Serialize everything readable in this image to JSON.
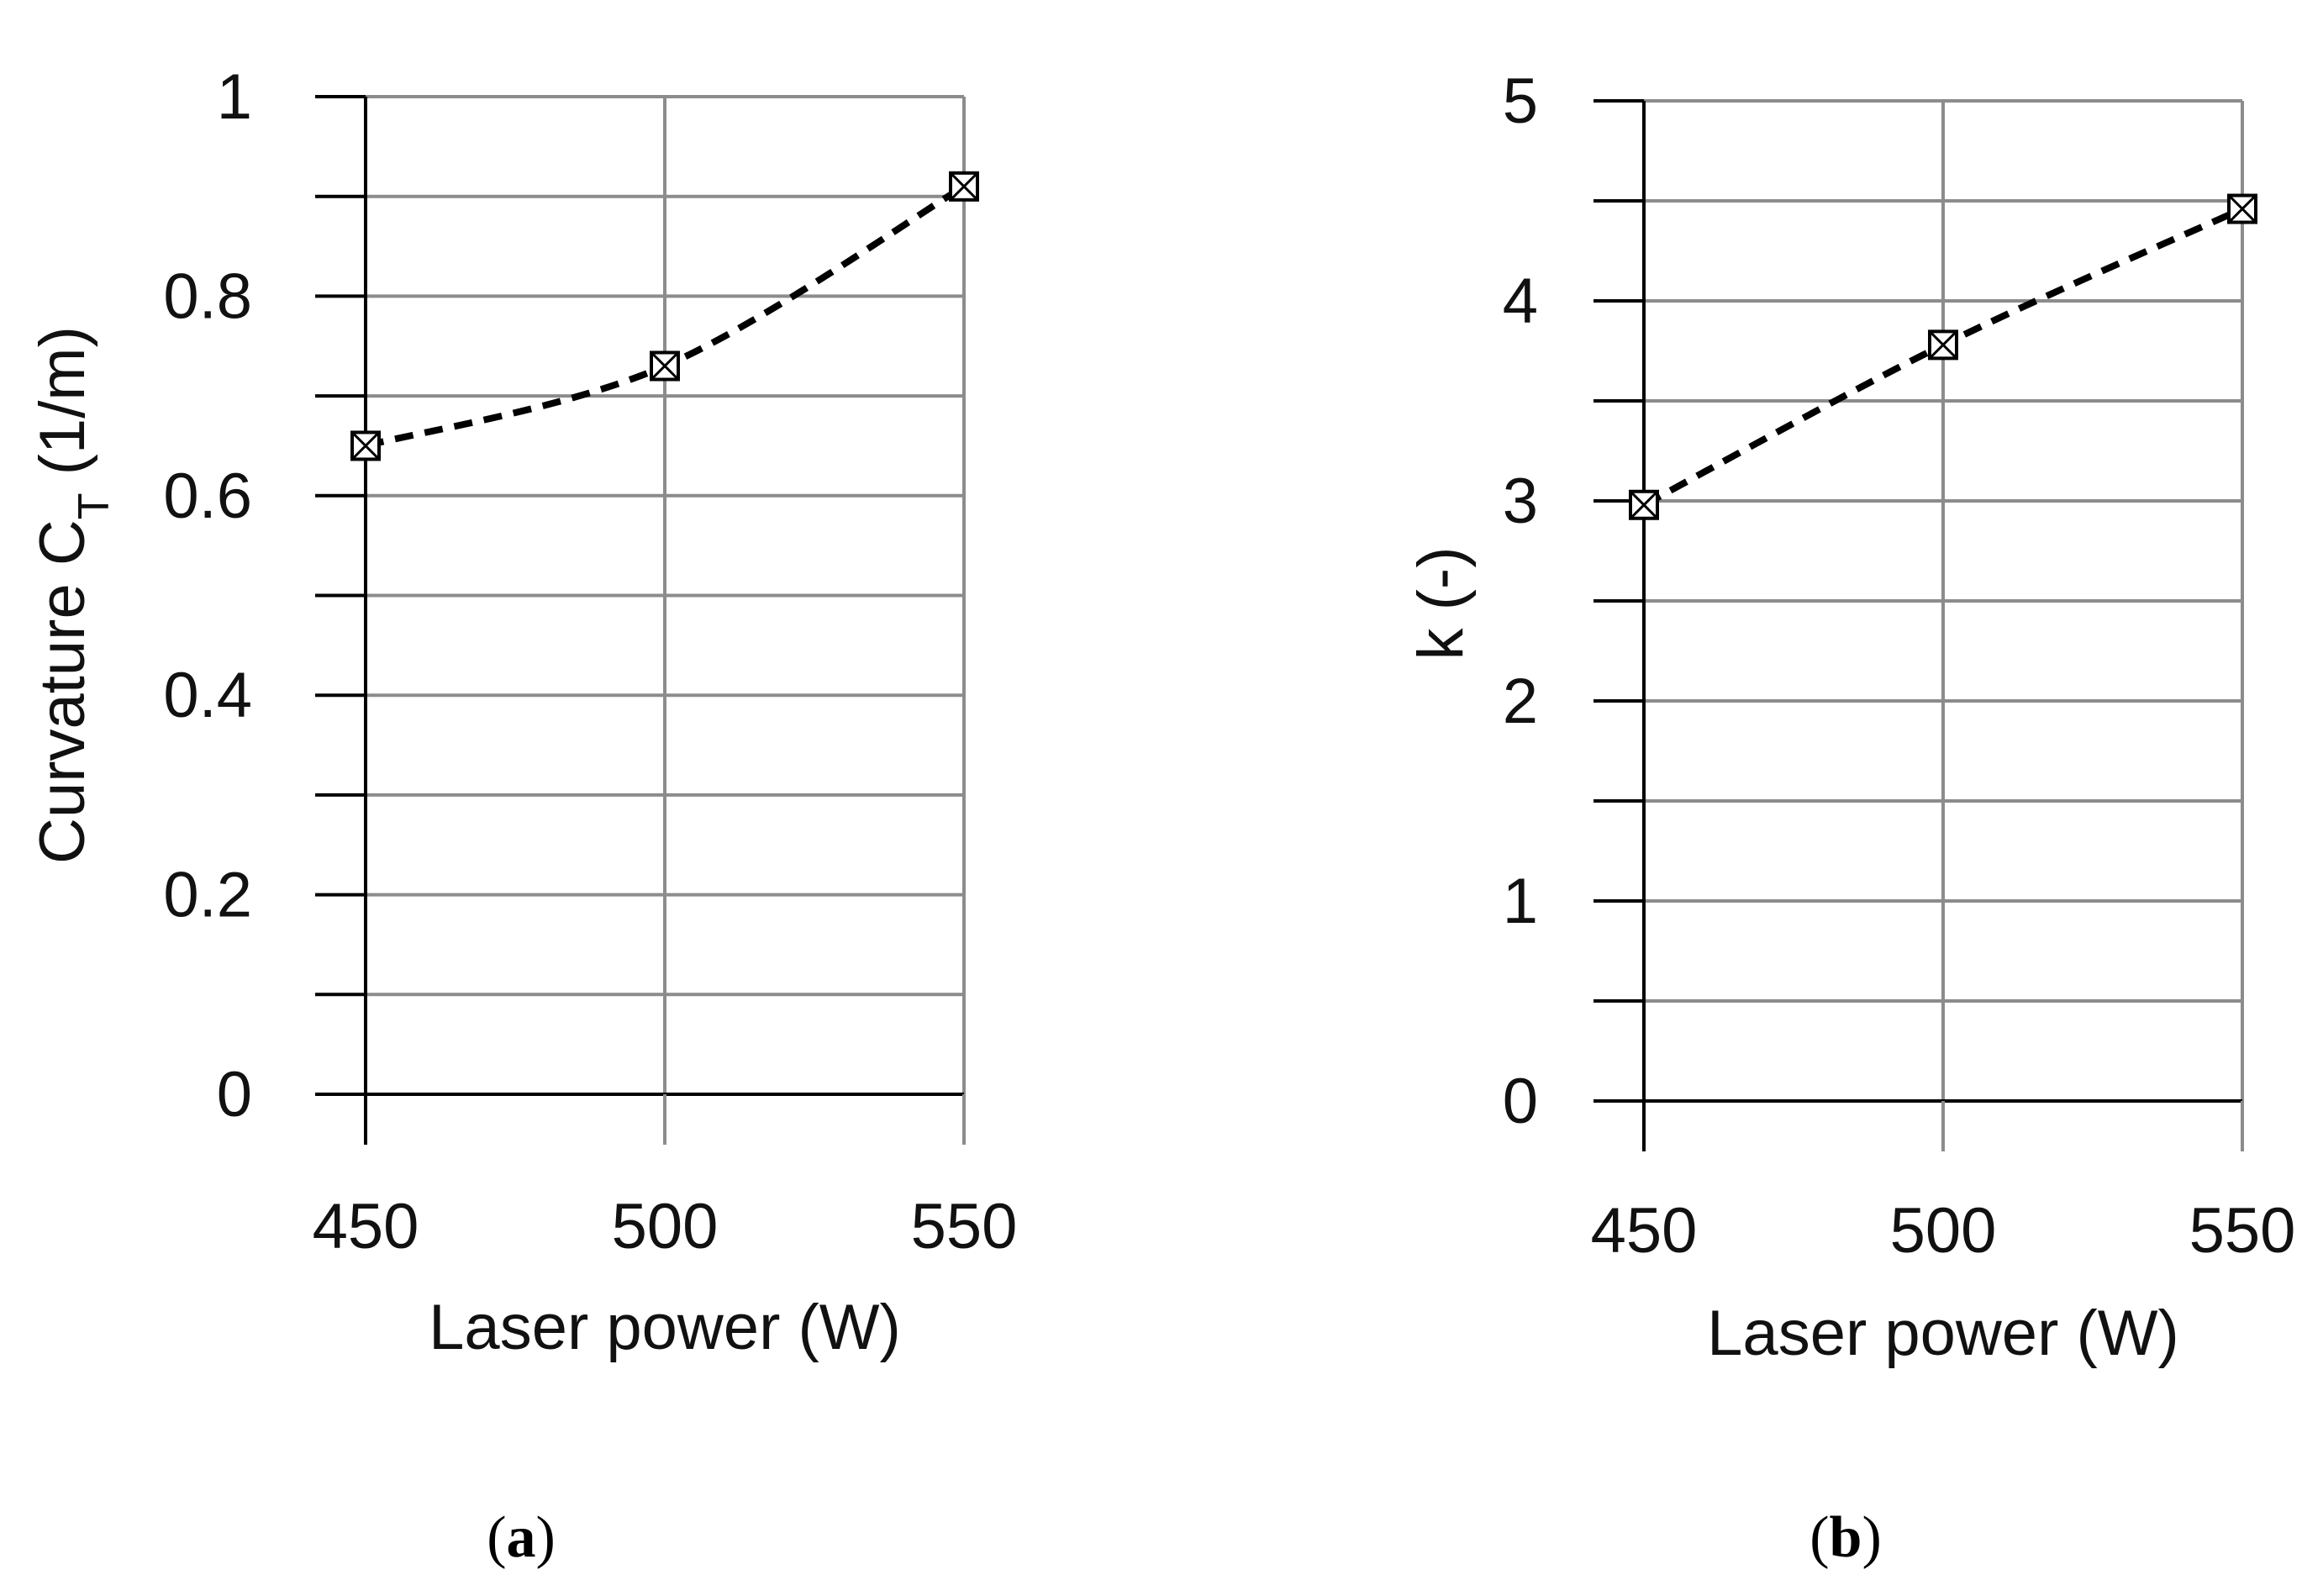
{
  "colors": {
    "axis": "#000000",
    "grid": "#8c8c8c",
    "series_line": "#000000",
    "marker": "#000000"
  },
  "chart_data": [
    {
      "type": "line",
      "panel_label": "a",
      "x": [
        450,
        500,
        550
      ],
      "series": [
        {
          "values": [
            0.65,
            0.73,
            0.91
          ],
          "line_style": "dashed",
          "marker": "boxed-x"
        }
      ],
      "xlabel": "Laser power (W)",
      "ylabel": "Curvature C",
      "ylabel_subscript": "T",
      "ylabel_suffix": " (1/m)",
      "xlim": [
        450,
        550
      ],
      "ylim": [
        0,
        1
      ],
      "x_ticks": [
        450,
        500,
        550
      ],
      "x_tick_labels": [
        "450",
        "500",
        "550"
      ],
      "y_ticks": [
        0,
        0.2,
        0.4,
        0.6,
        0.8,
        1
      ],
      "y_tick_labels": [
        "0",
        "0.2",
        "0.4",
        "0.6",
        "0.8",
        "1"
      ],
      "y_minor_step": 0.1,
      "grid": true
    },
    {
      "type": "line",
      "panel_label": "b",
      "x": [
        450,
        500,
        550
      ],
      "series": [
        {
          "values": [
            2.98,
            3.78,
            4.46
          ],
          "line_style": "dashed",
          "marker": "boxed-x"
        }
      ],
      "xlabel": "Laser power (W)",
      "ylabel": "k (-)",
      "xlim": [
        450,
        550
      ],
      "ylim": [
        0,
        5
      ],
      "x_ticks": [
        450,
        500,
        550
      ],
      "x_tick_labels": [
        "450",
        "500",
        "550"
      ],
      "y_ticks": [
        0,
        1,
        2,
        3,
        4,
        5
      ],
      "y_tick_labels": [
        "0",
        "1",
        "2",
        "3",
        "4",
        "5"
      ],
      "y_minor_step": 0.5,
      "grid": true
    }
  ]
}
